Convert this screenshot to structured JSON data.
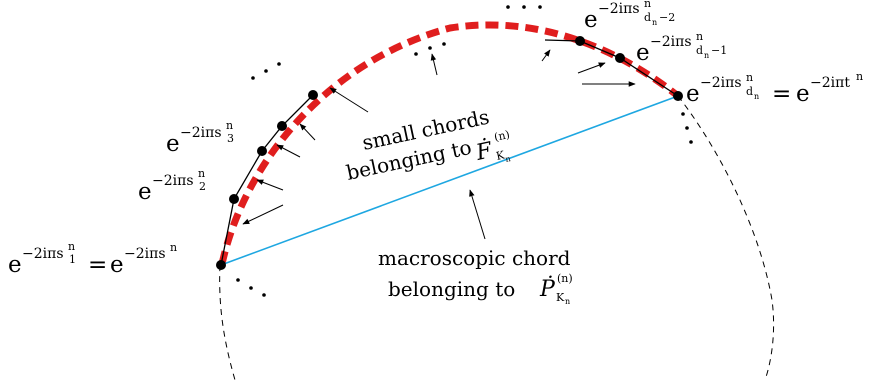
{
  "labels": {
    "bottom_left": {
      "base": "e",
      "exp": "−2iπs",
      "exp_sub": "1",
      "exp_sup": "n",
      "eq": "=",
      "rhs_base": "e",
      "rhs_exp": "−2iπs",
      "rhs_sup": "n"
    },
    "s2": {
      "base": "e",
      "exp": "−2iπs",
      "exp_sub": "2",
      "exp_sup": "n"
    },
    "s3": {
      "base": "e",
      "exp": "−2iπs",
      "exp_sub": "3",
      "exp_sup": "n"
    },
    "d_minus_2": {
      "base": "e",
      "exp": "−2iπs",
      "exp_sub": "d",
      "exp_subsub": "n",
      "exp_sub_tail": "−2",
      "exp_sup": "n"
    },
    "d_minus_1": {
      "base": "e",
      "exp": "−2iπs",
      "exp_sub": "d",
      "exp_subsub": "n",
      "exp_sub_tail": "−1",
      "exp_sup": "n"
    },
    "right": {
      "base": "e",
      "exp": "−2iπs",
      "exp_sub": "d",
      "exp_subsub": "n",
      "exp_sup": "n",
      "eq": "=",
      "rhs_base": "e",
      "rhs_exp": "−2iπt",
      "rhs_sup": "n"
    }
  },
  "small_chords": {
    "line1": "small chords",
    "line2": "belonging to",
    "sym": "Ḟ",
    "sym_sup": "(n)",
    "sym_sub": "K",
    "sym_subsub": "n"
  },
  "macro_chord": {
    "line1": "macroscopic chord",
    "line2": "belonging to",
    "sym": "Ṗ",
    "sym_sup": "(n)",
    "sym_sub": "K",
    "sym_subsub": "n"
  },
  "ellipsis": "· · ·",
  "colors": {
    "red_arc": "#e01e1e",
    "macro_chord": "#1ea7e1",
    "ink": "#000000"
  }
}
